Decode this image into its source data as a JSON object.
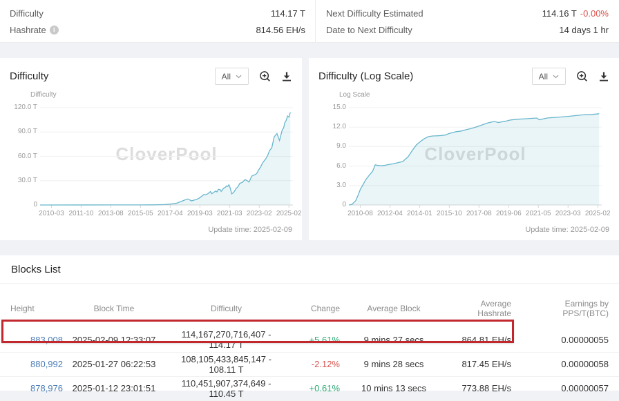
{
  "theme": {
    "page_bg": "#f0f2f5",
    "card_bg": "#ffffff",
    "link_blue": "#4a7cb5",
    "green": "#2bab72",
    "red": "#d9534f",
    "highlight_red": "#c1272d",
    "chart_line": "#68b6cc",
    "chart_fill": "rgba(104,182,204,0.14)"
  },
  "topbar": {
    "difficulty_label": "Difficulty",
    "difficulty_value": "114.17 T",
    "hashrate_label": "Hashrate",
    "hashrate_value": "814.56 EH/s",
    "next_diff_label": "Next Difficulty Estimated",
    "next_diff_value": "114.16 T",
    "next_diff_change": "-0.00%",
    "date_next_label": "Date to Next Difficulty",
    "date_next_value": "14 days 1 hr",
    "info_icon_glyph": "i"
  },
  "charts": [
    {
      "title": "Difficulty",
      "range_label": "All",
      "axis_label": "Difficulty",
      "watermark": "CloverPool",
      "update_time": "Update time: 2025-02-09",
      "chart_data": {
        "type": "area",
        "ylabel": "Difficulty",
        "ymax": 120,
        "yticks": [
          "120.0 T",
          "90.0 T",
          "60.0 T",
          "30.0 T",
          "0"
        ],
        "xticks": [
          "2010-03",
          "2011-10",
          "2013-08",
          "2015-05",
          "2017-04",
          "2019-03",
          "2021-03",
          "2023-02",
          "2025-02"
        ],
        "points": [
          [
            0,
            0
          ],
          [
            0.3,
            0.05
          ],
          [
            0.4,
            0.1
          ],
          [
            0.44,
            0.2
          ],
          [
            0.47,
            0.35
          ],
          [
            0.49,
            0.5
          ],
          [
            0.515,
            1.1
          ],
          [
            0.537,
            2.0
          ],
          [
            0.547,
            3.0
          ],
          [
            0.558,
            4.3
          ],
          [
            0.57,
            5.9
          ],
          [
            0.584,
            7.4
          ],
          [
            0.59,
            6.6
          ],
          [
            0.598,
            5.1
          ],
          [
            0.611,
            6.1
          ],
          [
            0.62,
            6.9
          ],
          [
            0.632,
            9.0
          ],
          [
            0.64,
            10.9
          ],
          [
            0.648,
            13.0
          ],
          [
            0.655,
            12.6
          ],
          [
            0.663,
            13.8
          ],
          [
            0.67,
            15.5
          ],
          [
            0.674,
            16.6
          ],
          [
            0.679,
            13.9
          ],
          [
            0.688,
            15.8
          ],
          [
            0.695,
            17.3
          ],
          [
            0.7,
            16.1
          ],
          [
            0.705,
            19.3
          ],
          [
            0.712,
            19.0
          ],
          [
            0.716,
            16.8
          ],
          [
            0.726,
            20.6
          ],
          [
            0.733,
            21.9
          ],
          [
            0.737,
            23.6
          ],
          [
            0.742,
            22.7
          ],
          [
            0.747,
            25.0
          ],
          [
            0.752,
            21.0
          ],
          [
            0.758,
            13.7
          ],
          [
            0.766,
            15.6
          ],
          [
            0.774,
            19.9
          ],
          [
            0.782,
            22.3
          ],
          [
            0.79,
            26.6
          ],
          [
            0.8,
            27.9
          ],
          [
            0.806,
            29.8
          ],
          [
            0.811,
            31.2
          ],
          [
            0.818,
            30.3
          ],
          [
            0.826,
            28.2
          ],
          [
            0.832,
            31.9
          ],
          [
            0.837,
            35.6
          ],
          [
            0.845,
            36.8
          ],
          [
            0.852,
            37.6
          ],
          [
            0.858,
            39.2
          ],
          [
            0.864,
            43.0
          ],
          [
            0.872,
            46.8
          ],
          [
            0.879,
            51.2
          ],
          [
            0.885,
            53.9
          ],
          [
            0.893,
            57.1
          ],
          [
            0.9,
            61.0
          ],
          [
            0.908,
            67.3
          ],
          [
            0.916,
            70.3
          ],
          [
            0.92,
            75.5
          ],
          [
            0.926,
            83.9
          ],
          [
            0.932,
            86.4
          ],
          [
            0.937,
            88.1
          ],
          [
            0.942,
            83.7
          ],
          [
            0.947,
            79.5
          ],
          [
            0.953,
            86.9
          ],
          [
            0.958,
            92.7
          ],
          [
            0.963,
            95.0
          ],
          [
            0.968,
            101.6
          ],
          [
            0.973,
            104.0
          ],
          [
            0.979,
            109.8
          ],
          [
            0.984,
            108.3
          ],
          [
            0.99,
            114.2
          ]
        ]
      }
    },
    {
      "title": "Difficulty (Log Scale)",
      "range_label": "All",
      "axis_label": "Log Scale",
      "watermark": "CloverPool",
      "update_time": "Update time: 2025-02-09",
      "chart_data": {
        "type": "area",
        "ylabel": "Log Scale",
        "ymax": 15,
        "yticks": [
          "15.0",
          "12.0",
          "9.0",
          "6.0",
          "3.0",
          "0"
        ],
        "xticks": [
          "2010-08",
          "2012-04",
          "2014-01",
          "2015-10",
          "2017-08",
          "2019-06",
          "2021-05",
          "2023-03",
          "2025-02"
        ],
        "points": [
          [
            0,
            0
          ],
          [
            0.012,
            0.1
          ],
          [
            0.027,
            0.66
          ],
          [
            0.038,
            1.65
          ],
          [
            0.045,
            2.39
          ],
          [
            0.056,
            3.14
          ],
          [
            0.067,
            3.9
          ],
          [
            0.077,
            4.41
          ],
          [
            0.094,
            5.2
          ],
          [
            0.104,
            6.19
          ],
          [
            0.115,
            6.1
          ],
          [
            0.126,
            6.04
          ],
          [
            0.14,
            6.1
          ],
          [
            0.153,
            6.21
          ],
          [
            0.175,
            6.34
          ],
          [
            0.196,
            6.54
          ],
          [
            0.213,
            6.69
          ],
          [
            0.223,
            7.05
          ],
          [
            0.234,
            7.42
          ],
          [
            0.251,
            8.43
          ],
          [
            0.267,
            9.25
          ],
          [
            0.283,
            9.79
          ],
          [
            0.299,
            10.23
          ],
          [
            0.315,
            10.54
          ],
          [
            0.332,
            10.64
          ],
          [
            0.359,
            10.68
          ],
          [
            0.38,
            10.78
          ],
          [
            0.397,
            11.02
          ],
          [
            0.424,
            11.3
          ],
          [
            0.445,
            11.4
          ],
          [
            0.461,
            11.59
          ],
          [
            0.488,
            11.83
          ],
          [
            0.499,
            11.97
          ],
          [
            0.521,
            12.27
          ],
          [
            0.548,
            12.63
          ],
          [
            0.575,
            12.87
          ],
          [
            0.591,
            12.71
          ],
          [
            0.618,
            12.9
          ],
          [
            0.64,
            13.11
          ],
          [
            0.667,
            13.22
          ],
          [
            0.699,
            13.29
          ],
          [
            0.743,
            13.4
          ],
          [
            0.753,
            13.14
          ],
          [
            0.786,
            13.42
          ],
          [
            0.834,
            13.55
          ],
          [
            0.861,
            13.63
          ],
          [
            0.899,
            13.79
          ],
          [
            0.937,
            13.94
          ],
          [
            0.948,
            13.9
          ],
          [
            0.99,
            14.06
          ]
        ]
      }
    }
  ],
  "blocks": {
    "title": "Blocks List",
    "columns": [
      {
        "label": "Height",
        "align": "left"
      },
      {
        "label": "Block Time",
        "align": "center"
      },
      {
        "label": "Difficulty",
        "align": "center"
      },
      {
        "label": "Change",
        "align": "right"
      },
      {
        "label": "Average Block",
        "align": "center"
      },
      {
        "label": "Average Hashrate",
        "align": "right"
      },
      {
        "label": "Earnings by PPS/T(BTC)",
        "align": "right"
      }
    ],
    "rows": [
      [
        "883,008",
        "2025-02-09 12:33:07",
        "114,167,270,716,407 - 114.17 T",
        "+5.61%",
        "9 mins 27 secs",
        "864.81 EH/s",
        "0.00000055"
      ],
      [
        "880,992",
        "2025-01-27 06:22:53",
        "108,105,433,845,147 - 108.11 T",
        "-2.12%",
        "9 mins 28 secs",
        "817.45 EH/s",
        "0.00000058"
      ],
      [
        "878,976",
        "2025-01-12 23:01:51",
        "110,451,907,374,649 - 110.45 T",
        "+0.61%",
        "10 mins 13 secs",
        "773.88 EH/s",
        "0.00000057"
      ]
    ]
  }
}
